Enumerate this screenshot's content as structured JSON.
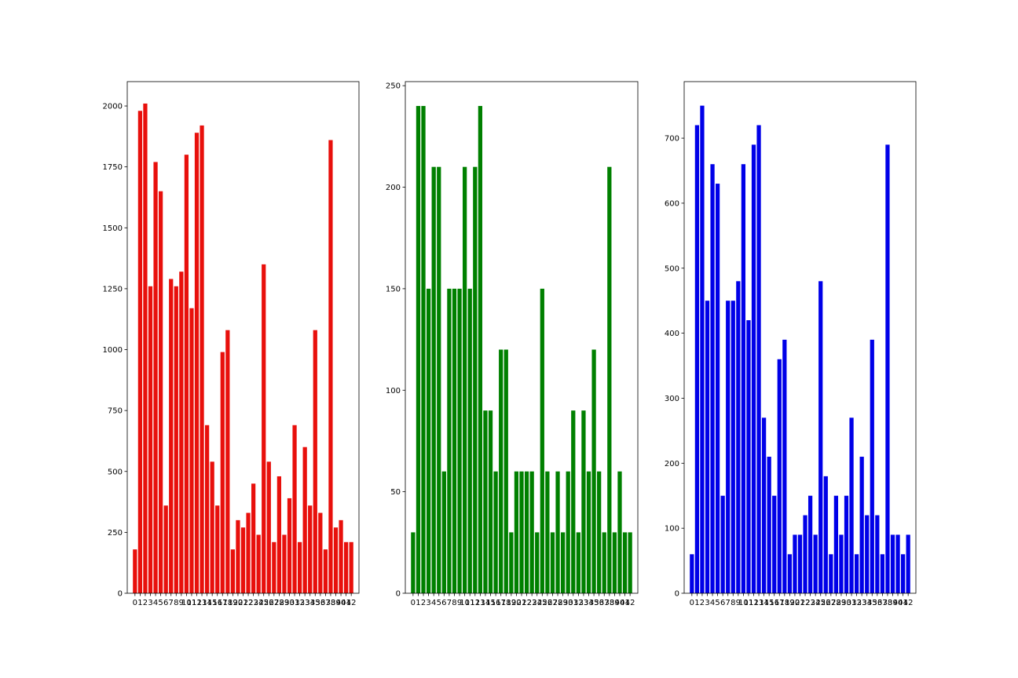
{
  "chart_data": [
    {
      "type": "bar",
      "color": "#e8100c",
      "categories": [
        "0",
        "1",
        "2",
        "3",
        "4",
        "5",
        "6",
        "7",
        "8",
        "9",
        "10",
        "11",
        "12",
        "13",
        "14",
        "15",
        "16",
        "17",
        "18",
        "19",
        "20",
        "21",
        "22",
        "23",
        "24",
        "25",
        "26",
        "27",
        "28",
        "29",
        "30",
        "31",
        "32",
        "33",
        "34",
        "35",
        "36",
        "37",
        "38",
        "39",
        "40",
        "41",
        "42"
      ],
      "values": [
        180,
        1980,
        2010,
        1260,
        1770,
        1650,
        360,
        1290,
        1260,
        1320,
        1800,
        1170,
        1890,
        1920,
        690,
        540,
        360,
        990,
        1080,
        180,
        300,
        270,
        330,
        450,
        240,
        1350,
        540,
        210,
        480,
        240,
        390,
        690,
        210,
        600,
        360,
        1080,
        330,
        180,
        1860,
        270,
        300,
        210,
        210
      ],
      "ylim": [
        0,
        2100
      ],
      "yticks": [
        0,
        250,
        500,
        750,
        1000,
        1250,
        1500,
        1750,
        2000
      ],
      "xlabel": "",
      "ylabel": "",
      "title": ""
    },
    {
      "type": "bar",
      "color": "#008000",
      "categories": [
        "0",
        "1",
        "2",
        "3",
        "4",
        "5",
        "6",
        "7",
        "8",
        "9",
        "10",
        "11",
        "12",
        "13",
        "14",
        "15",
        "16",
        "17",
        "18",
        "19",
        "20",
        "21",
        "22",
        "23",
        "24",
        "25",
        "26",
        "27",
        "28",
        "29",
        "30",
        "31",
        "32",
        "33",
        "34",
        "35",
        "36",
        "37",
        "38",
        "39",
        "40",
        "41",
        "42"
      ],
      "values": [
        30,
        240,
        240,
        150,
        210,
        210,
        60,
        150,
        150,
        150,
        210,
        150,
        210,
        240,
        90,
        90,
        60,
        120,
        120,
        30,
        60,
        60,
        60,
        60,
        30,
        150,
        60,
        30,
        60,
        30,
        60,
        90,
        30,
        90,
        60,
        120,
        60,
        30,
        210,
        30,
        60,
        30,
        30
      ],
      "ylim": [
        0,
        252
      ],
      "yticks": [
        0,
        50,
        100,
        150,
        200,
        250
      ],
      "xlabel": "",
      "ylabel": "",
      "title": ""
    },
    {
      "type": "bar",
      "color": "#0000e8",
      "categories": [
        "0",
        "1",
        "2",
        "3",
        "4",
        "5",
        "6",
        "7",
        "8",
        "9",
        "10",
        "11",
        "12",
        "13",
        "14",
        "15",
        "16",
        "17",
        "18",
        "19",
        "20",
        "21",
        "22",
        "23",
        "24",
        "25",
        "26",
        "27",
        "28",
        "29",
        "30",
        "31",
        "32",
        "33",
        "34",
        "35",
        "36",
        "37",
        "38",
        "39",
        "40",
        "41",
        "42"
      ],
      "values": [
        60,
        720,
        750,
        450,
        660,
        630,
        150,
        450,
        450,
        480,
        660,
        420,
        690,
        720,
        270,
        210,
        150,
        360,
        390,
        60,
        90,
        90,
        120,
        150,
        90,
        480,
        180,
        60,
        150,
        90,
        150,
        270,
        60,
        210,
        120,
        390,
        120,
        60,
        690,
        90,
        90,
        60,
        90
      ],
      "ylim": [
        0,
        787
      ],
      "yticks": [
        0,
        100,
        200,
        300,
        400,
        500,
        600,
        700
      ],
      "xlabel": "",
      "ylabel": "",
      "title": ""
    }
  ]
}
